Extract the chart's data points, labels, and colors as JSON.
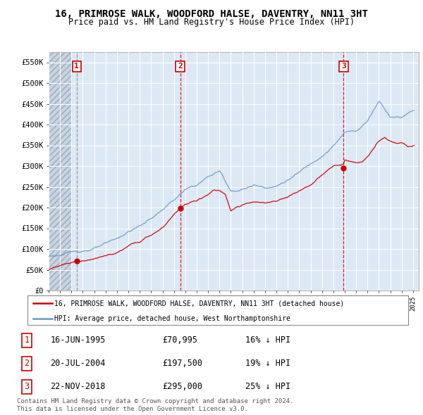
{
  "title": "16, PRIMROSE WALK, WOODFORD HALSE, DAVENTRY, NN11 3HT",
  "subtitle": "Price paid vs. HM Land Registry's House Price Index (HPI)",
  "legend_line1": "16, PRIMROSE WALK, WOODFORD HALSE, DAVENTRY, NN11 3HT (detached house)",
  "legend_line2": "HPI: Average price, detached house, West Northamptonshire",
  "footer1": "Contains HM Land Registry data © Crown copyright and database right 2024.",
  "footer2": "This data is licensed under the Open Government Licence v3.0.",
  "sale_color": "#cc0000",
  "hpi_color": "#6699cc",
  "bg_color": "#dde8f5",
  "hatch_color": "#c8d4e0",
  "grid_color": "#ffffff",
  "ylim": [
    0,
    575000
  ],
  "yticks": [
    0,
    50000,
    100000,
    150000,
    200000,
    250000,
    300000,
    350000,
    400000,
    450000,
    500000,
    550000
  ],
  "ytick_labels": [
    "£0",
    "£50K",
    "£100K",
    "£150K",
    "£200K",
    "£250K",
    "£300K",
    "£350K",
    "£400K",
    "£450K",
    "£500K",
    "£550K"
  ],
  "sales": [
    {
      "date_num": 1995.46,
      "price": 70995,
      "label": "1"
    },
    {
      "date_num": 2004.55,
      "price": 197500,
      "label": "2"
    },
    {
      "date_num": 2018.9,
      "price": 295000,
      "label": "3"
    }
  ],
  "sale1_vline_color": "#888888",
  "sale23_vline_color": "#cc0000",
  "table_rows": [
    {
      "num": "1",
      "date": "16-JUN-1995",
      "price": "£70,995",
      "note": "16% ↓ HPI"
    },
    {
      "num": "2",
      "date": "20-JUL-2004",
      "price": "£197,500",
      "note": "19% ↓ HPI"
    },
    {
      "num": "3",
      "date": "22-NOV-2018",
      "price": "£295,000",
      "note": "25% ↓ HPI"
    }
  ]
}
